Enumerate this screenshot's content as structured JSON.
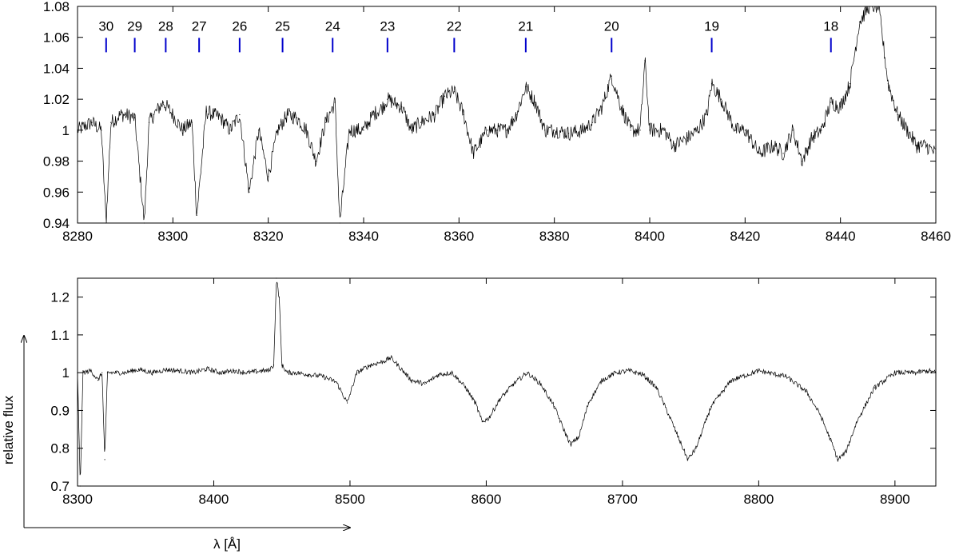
{
  "chart_data": [
    {
      "type": "line",
      "title": "",
      "xlabel": "",
      "ylabel": "",
      "xlim": [
        8280,
        8460
      ],
      "ylim": [
        0.94,
        1.08
      ],
      "x_ticks": [
        8280,
        8300,
        8320,
        8340,
        8360,
        8380,
        8400,
        8420,
        8440,
        8460
      ],
      "x_tick_labels": [
        "8280",
        "8300",
        "8320",
        "8340",
        "8360",
        "8380",
        "8400",
        "8420",
        "8440",
        "8460"
      ],
      "y_ticks": [
        0.94,
        0.96,
        0.98,
        1.0,
        1.02,
        1.04,
        1.06,
        1.08
      ],
      "y_tick_labels": [
        "0.94",
        "0.96",
        "0.98",
        "1",
        "1.02",
        "1.04",
        "1.06",
        "1.08"
      ],
      "grid": false,
      "series": [
        {
          "color": "#000000",
          "x": [
            8280,
            8283,
            8285,
            8286,
            8287,
            8289,
            8290,
            8292,
            8294,
            8295,
            8296,
            8298,
            8300,
            8302,
            8304,
            8305,
            8307,
            8310,
            8312,
            8314,
            8316,
            8318,
            8320,
            8322,
            8324,
            8326,
            8328,
            8330,
            8332,
            8334,
            8335,
            8337,
            8340,
            8342,
            8344,
            8345,
            8348,
            8350,
            8352,
            8355,
            8357,
            8359,
            8361,
            8363,
            8366,
            8368,
            8370,
            8372,
            8374,
            8376,
            8378,
            8380,
            8383,
            8386,
            8388,
            8390,
            8392,
            8394,
            8396,
            8398,
            8399,
            8400,
            8403,
            8405,
            8408,
            8410,
            8412,
            8413,
            8415,
            8418,
            8420,
            8423,
            8426,
            8428,
            8430,
            8432,
            8434,
            8436,
            8438,
            8440,
            8442,
            8444,
            8446,
            8448,
            8450,
            8452,
            8454,
            8456,
            8458,
            8460
          ],
          "y": [
            1.0,
            1.005,
            1.0,
            0.94,
            1.005,
            1.01,
            1.01,
            1.008,
            0.94,
            1.005,
            1.01,
            1.018,
            1.01,
            1.0,
            1.005,
            0.945,
            1.012,
            1.008,
            1.0,
            1.01,
            0.96,
            1.0,
            0.97,
            1.0,
            1.01,
            1.008,
            1.0,
            0.98,
            1.005,
            1.018,
            0.94,
            1.0,
            1.0,
            1.01,
            1.015,
            1.02,
            1.015,
            1.0,
            1.005,
            1.01,
            1.022,
            1.025,
            1.01,
            0.985,
            1.0,
            1.0,
            1.0,
            1.01,
            1.028,
            1.018,
            1.0,
            1.0,
            0.998,
            1.0,
            1.005,
            1.015,
            1.035,
            1.015,
            1.0,
            1.0,
            1.045,
            1.0,
            1.0,
            0.99,
            0.995,
            1.0,
            1.01,
            1.03,
            1.02,
            1.0,
            1.0,
            0.985,
            0.99,
            0.985,
            1.0,
            0.98,
            0.995,
            1.0,
            1.018,
            1.015,
            1.03,
            1.07,
            1.08,
            1.08,
            1.03,
            1.01,
            1.0,
            0.99,
            0.99,
            0.985
          ]
        }
      ],
      "line_markers": {
        "color": "#0000cc",
        "y": 1.055,
        "items": [
          {
            "label": "30",
            "x": 8286
          },
          {
            "label": "29",
            "x": 8292
          },
          {
            "label": "28",
            "x": 8298.5
          },
          {
            "label": "27",
            "x": 8305.5
          },
          {
            "label": "26",
            "x": 8314
          },
          {
            "label": "25",
            "x": 8323
          },
          {
            "label": "24",
            "x": 8333.5
          },
          {
            "label": "23",
            "x": 8345
          },
          {
            "label": "22",
            "x": 8359
          },
          {
            "label": "21",
            "x": 8374
          },
          {
            "label": "20",
            "x": 8392
          },
          {
            "label": "19",
            "x": 8413
          },
          {
            "label": "18",
            "x": 8438
          }
        ]
      }
    },
    {
      "type": "line",
      "title": "",
      "xlabel": "λ [Å]",
      "ylabel": "relative flux",
      "xlim": [
        8300,
        8930
      ],
      "ylim": [
        0.7,
        1.25
      ],
      "x_ticks": [
        8300,
        8400,
        8500,
        8600,
        8700,
        8800,
        8900
      ],
      "x_tick_labels": [
        "8300",
        "8400",
        "8500",
        "8600",
        "8700",
        "8800",
        "8900"
      ],
      "y_ticks": [
        0.7,
        0.8,
        0.9,
        1.0,
        1.1,
        1.2
      ],
      "y_tick_labels": [
        "0.7",
        "0.8",
        "0.9",
        "1",
        "1.1",
        "1.2"
      ],
      "grid": false,
      "series": [
        {
          "color": "#000000",
          "x": [
            8300,
            8302,
            8304,
            8310,
            8315,
            8318,
            8320,
            8322,
            8330,
            8335,
            8340,
            8345,
            8355,
            8365,
            8375,
            8385,
            8395,
            8405,
            8415,
            8425,
            8435,
            8440,
            8444,
            8446,
            8448,
            8450,
            8454,
            8460,
            8470,
            8480,
            8490,
            8498,
            8505,
            8515,
            8525,
            8530,
            8535,
            8540,
            8545,
            8555,
            8565,
            8575,
            8585,
            8592,
            8597,
            8602,
            8610,
            8620,
            8630,
            8640,
            8650,
            8658,
            8662,
            8668,
            8675,
            8685,
            8695,
            8705,
            8715,
            8725,
            8735,
            8742,
            8748,
            8754,
            8765,
            8780,
            8800,
            8820,
            8835,
            8845,
            8853,
            8858,
            8864,
            8872,
            8885,
            8900,
            8915,
            8925,
            8930
          ],
          "y": [
            1.0,
            0.7,
            1.0,
            1.005,
            0.98,
            1.0,
            0.77,
            1.0,
            1.0,
            1.0,
            1.005,
            1.008,
            1.0,
            1.008,
            1.005,
            1.0,
            1.01,
            1.0,
            1.005,
            1.0,
            1.005,
            1.005,
            1.02,
            1.25,
            1.2,
            1.02,
            1.0,
            1.0,
            0.995,
            0.99,
            0.975,
            0.92,
            1.0,
            1.02,
            1.03,
            1.04,
            1.02,
            1.0,
            0.98,
            0.97,
            0.995,
            1.0,
            0.96,
            0.92,
            0.87,
            0.88,
            0.93,
            0.97,
            1.0,
            0.97,
            0.91,
            0.84,
            0.81,
            0.83,
            0.92,
            0.98,
            1.0,
            1.005,
            0.995,
            0.96,
            0.88,
            0.82,
            0.77,
            0.8,
            0.91,
            0.98,
            1.005,
            0.99,
            0.95,
            0.89,
            0.82,
            0.77,
            0.79,
            0.87,
            0.96,
            1.0,
            1.0,
            1.005,
            1.0
          ]
        }
      ]
    }
  ]
}
